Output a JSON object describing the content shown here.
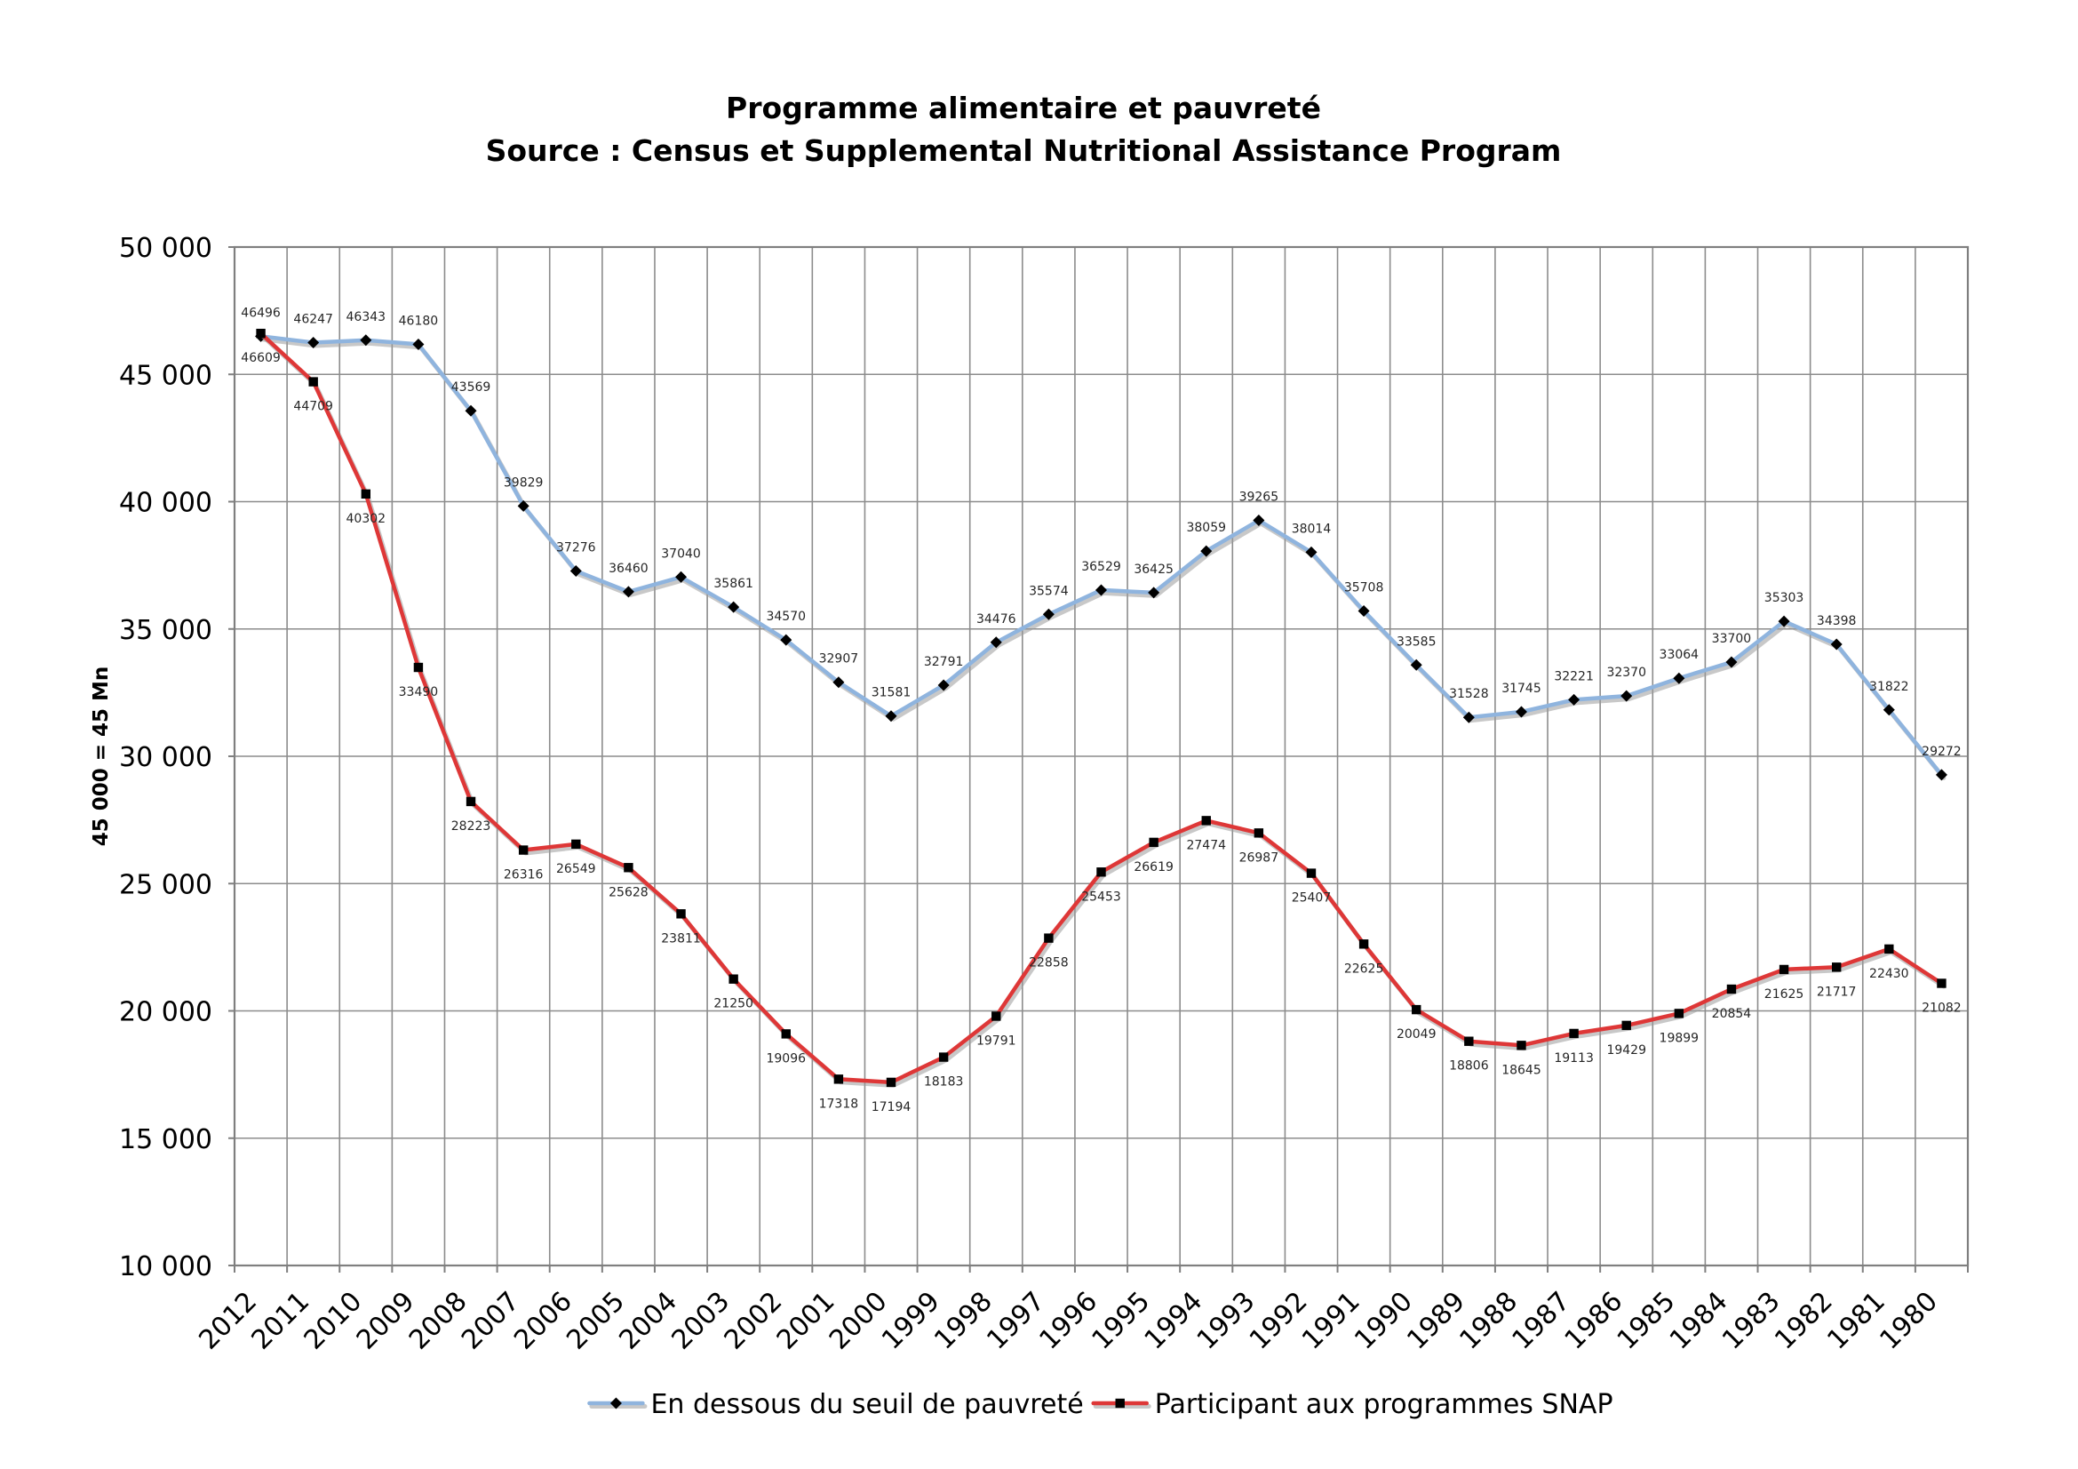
{
  "chart_data": {
    "type": "line",
    "title": "Programme alimentaire et pauvreté",
    "subtitle": "Source : Census et Supplemental Nutritional Assistance Program",
    "ylabel": "45 000 = 45 Mn",
    "categories": [
      "2012",
      "2011",
      "2010",
      "2009",
      "2008",
      "2007",
      "2006",
      "2005",
      "2004",
      "2003",
      "2002",
      "2001",
      "2000",
      "1999",
      "1998",
      "1997",
      "1996",
      "1995",
      "1994",
      "1993",
      "1992",
      "1991",
      "1990",
      "1989",
      "1988",
      "1987",
      "1986",
      "1985",
      "1984",
      "1983",
      "1982",
      "1981",
      "1980"
    ],
    "ylim": [
      10000,
      50000
    ],
    "yticks": [
      10000,
      15000,
      20000,
      25000,
      30000,
      35000,
      40000,
      45000,
      50000
    ],
    "ytick_labels": [
      "10 000",
      "15 000",
      "20 000",
      "25 000",
      "30 000",
      "35 000",
      "40 000",
      "45 000",
      "50 000"
    ],
    "grid": true,
    "legend": "bottom",
    "data_labels": true,
    "series": [
      {
        "name": "En dessous du seuil de pauvreté",
        "color": "#8FB4DE",
        "marker": "diamond",
        "values": [
          46496,
          46247,
          46343,
          46180,
          43569,
          39829,
          37276,
          36460,
          37040,
          35861,
          34570,
          32907,
          31581,
          32791,
          34476,
          35574,
          36529,
          36425,
          38059,
          39265,
          38014,
          35708,
          33585,
          31528,
          31745,
          32221,
          32370,
          33064,
          33700,
          35303,
          34398,
          31822,
          29272
        ]
      },
      {
        "name": "Participant aux programmes SNAP",
        "color": "#DE3737",
        "marker": "square",
        "values": [
          46609,
          44709,
          40302,
          33490,
          28223,
          26316,
          26549,
          25628,
          23811,
          21250,
          19096,
          17318,
          17194,
          18183,
          19791,
          22858,
          25453,
          26619,
          27474,
          26987,
          25407,
          22625,
          20049,
          18806,
          18645,
          19113,
          19429,
          19899,
          20854,
          21625,
          21717,
          22430,
          21082
        ]
      }
    ]
  }
}
